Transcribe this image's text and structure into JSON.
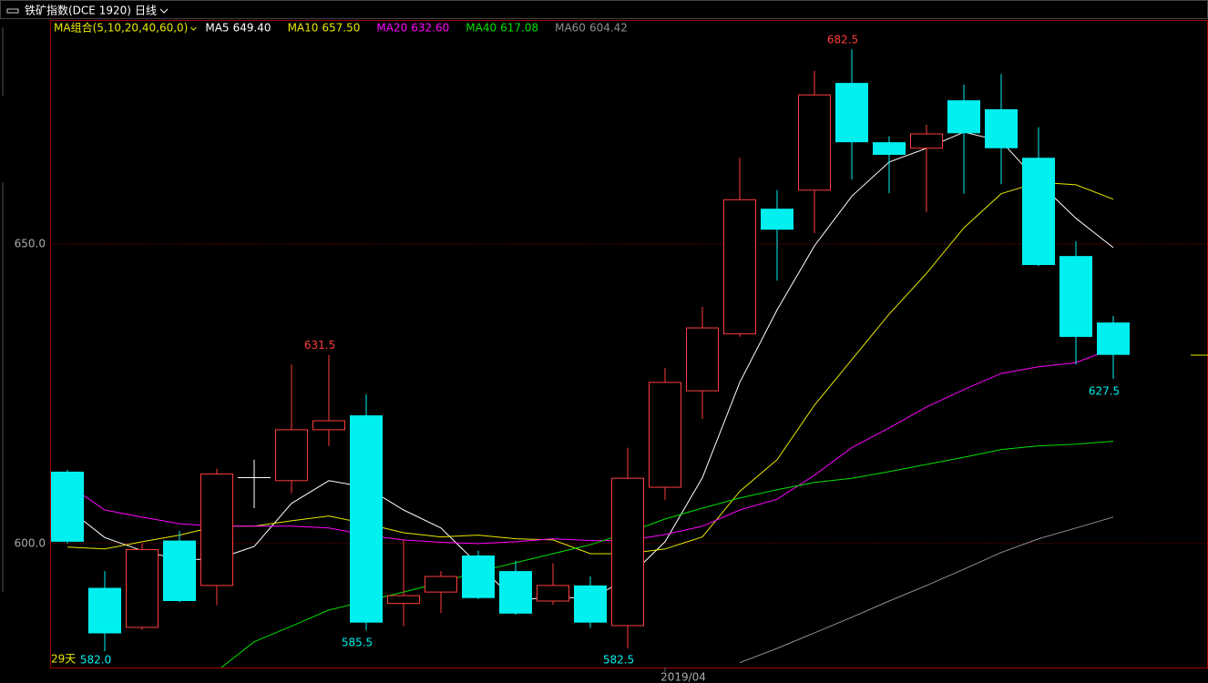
{
  "header": {
    "symbol": "铁矿指数(DCE 1920)",
    "period": "日线"
  },
  "chart_data": {
    "type": "candlestick",
    "ma_group_label": "MA组合(5,10,20,40,60,0)",
    "count_label": "29天",
    "categories": [
      null,
      null,
      null,
      null,
      null,
      null,
      null,
      null,
      null,
      null,
      null,
      null,
      null,
      null,
      null,
      null,
      "2019/04",
      null,
      null,
      null,
      null,
      null,
      null,
      null,
      null,
      null,
      null,
      null,
      null
    ],
    "open": [
      612.0,
      592.6,
      586.0,
      600.5,
      593.0,
      611.0,
      610.5,
      619.0,
      621.4,
      590.0,
      591.9,
      598.0,
      595.4,
      590.4,
      593.0,
      586.3,
      609.4,
      625.5,
      635.0,
      655.9,
      659.0,
      676.9,
      667.0,
      666.0,
      674.0,
      672.5,
      664.4,
      648.0,
      636.9
    ],
    "high": [
      612.3,
      595.4,
      600.0,
      602.1,
      612.5,
      614.0,
      629.9,
      631.5,
      624.9,
      600.6,
      595.4,
      598.8,
      597.1,
      596.7,
      594.5,
      616.0,
      629.3,
      639.5,
      664.4,
      659.0,
      678.9,
      682.5,
      668.0,
      669.9,
      676.6,
      678.4,
      669.5,
      650.5,
      638.0
    ],
    "low": [
      600.0,
      582.0,
      585.6,
      590.2,
      589.7,
      605.9,
      608.4,
      616.3,
      585.5,
      586.2,
      588.4,
      590.7,
      588.1,
      589.8,
      585.9,
      582.5,
      607.3,
      620.8,
      634.5,
      643.9,
      651.8,
      660.8,
      658.5,
      655.3,
      658.4,
      660.0,
      646.3,
      629.9,
      627.5
    ],
    "close": [
      600.3,
      585.0,
      599.0,
      590.4,
      611.6,
      611.0,
      619.0,
      620.5,
      586.8,
      591.3,
      594.5,
      590.9,
      588.3,
      593.0,
      586.8,
      610.9,
      626.9,
      636.0,
      657.4,
      652.4,
      674.9,
      667.0,
      664.9,
      668.4,
      668.5,
      666.0,
      646.5,
      634.5,
      631.5
    ],
    "high_labels": [
      null,
      null,
      null,
      null,
      null,
      null,
      null,
      "631.5",
      null,
      null,
      null,
      null,
      null,
      null,
      null,
      null,
      null,
      null,
      null,
      null,
      null,
      "682.5",
      null,
      null,
      null,
      null,
      null,
      null,
      null
    ],
    "low_labels": [
      null,
      "582.0",
      null,
      null,
      null,
      null,
      null,
      null,
      "585.5",
      null,
      null,
      null,
      null,
      null,
      null,
      "582.5",
      null,
      null,
      null,
      null,
      null,
      null,
      null,
      null,
      null,
      null,
      null,
      null,
      "627.5"
    ],
    "up_color": "#ff3c3c",
    "down_color": "#00f0f0",
    "flat_color": "#ffffff",
    "ylim": [
      579.3,
      687.4
    ],
    "yticks": [
      {
        "value": 600,
        "label": "600.0"
      },
      {
        "value": 650,
        "label": "650.0"
      }
    ],
    "grid": true,
    "series": [
      {
        "name": "MA5",
        "legend_value": "649.40",
        "color": "#ffffff",
        "values": [
          605.9,
          601.0,
          598.8,
          597.3,
          597.4,
          599.5,
          606.7,
          610.5,
          609.4,
          605.6,
          602.6,
          596.5,
          590.4,
          591.2,
          590.7,
          594.2,
          600.3,
          611.0,
          626.9,
          639.0,
          649.7,
          658.0,
          663.7,
          666.0,
          668.7,
          667.2,
          660.3,
          654.3,
          649.4
        ]
      },
      {
        "name": "MA10",
        "legend_value": "657.50",
        "color": "#e8e800",
        "values": [
          599.4,
          599.1,
          600.3,
          601.4,
          602.9,
          602.9,
          603.8,
          604.6,
          603.3,
          601.8,
          601.1,
          601.4,
          600.8,
          600.6,
          598.3,
          598.3,
          599.1,
          601.1,
          608.7,
          614.0,
          623.1,
          630.7,
          638.3,
          645.1,
          652.7,
          658.4,
          660.3,
          659.9,
          657.5
        ]
      },
      {
        "name": "MA20",
        "legend_value": "632.60",
        "color": "#ff00ff",
        "values": [
          609.9,
          605.6,
          604.4,
          603.3,
          602.9,
          602.9,
          602.9,
          602.6,
          601.4,
          600.6,
          600.2,
          600.0,
          600.3,
          600.8,
          600.5,
          600.5,
          601.5,
          602.9,
          605.6,
          607.4,
          611.4,
          616.0,
          619.3,
          622.8,
          625.7,
          628.4,
          629.5,
          630.2,
          632.6
        ]
      },
      {
        "name": "MA40",
        "legend_value": "617.08",
        "color": "#00e000",
        "values": [
          null,
          null,
          null,
          null,
          578.7,
          583.6,
          586.2,
          588.9,
          590.4,
          591.9,
          593.5,
          595.3,
          596.8,
          598.3,
          599.8,
          601.8,
          604.1,
          605.9,
          607.6,
          609.0,
          610.2,
          610.9,
          612.0,
          613.2,
          614.4,
          615.7,
          616.3,
          616.6,
          617.08
        ]
      },
      {
        "name": "MA60",
        "legend_value": "604.42",
        "color": "#909090",
        "values": [
          null,
          null,
          null,
          null,
          null,
          null,
          null,
          null,
          null,
          null,
          null,
          null,
          null,
          null,
          null,
          null,
          null,
          null,
          580.1,
          582.5,
          585.1,
          587.7,
          590.4,
          593.0,
          595.7,
          598.5,
          600.8,
          602.6,
          604.42
        ]
      }
    ]
  }
}
